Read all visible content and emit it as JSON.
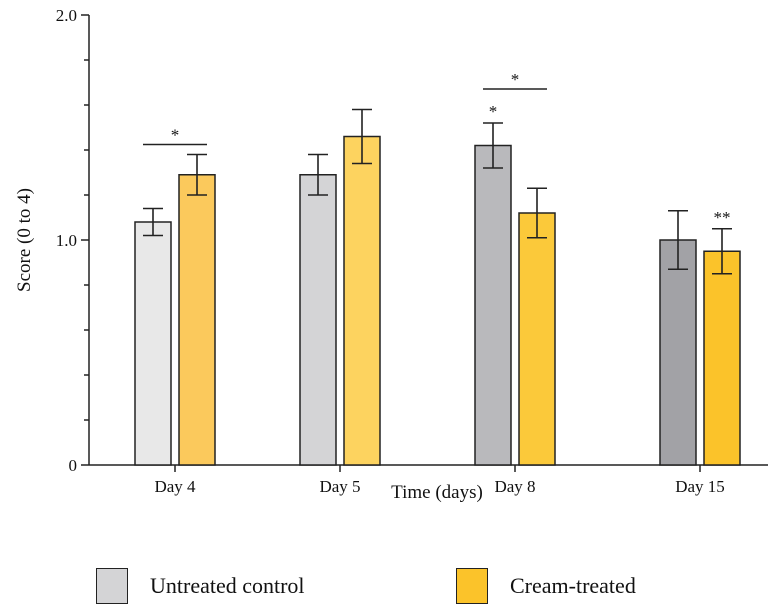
{
  "chart_data": {
    "type": "bar",
    "title": "",
    "xlabel": "Time (days)",
    "ylabel": "Score (0 to 4)",
    "ylim": [
      0,
      2.0
    ],
    "yticks": [
      {
        "value": 0,
        "label": "0"
      },
      {
        "value": 1.0,
        "label": "1.0"
      },
      {
        "value": 2.0,
        "label": "2.0"
      }
    ],
    "y_minor_step": 0.2,
    "categories": [
      "Day 4",
      "Day 5",
      "Day 8",
      "Day 15"
    ],
    "series": [
      {
        "name": "Untreated control",
        "values": [
          1.08,
          1.29,
          1.42,
          1.0
        ],
        "errors": [
          0.06,
          0.09,
          0.1,
          0.13
        ],
        "colors": [
          "#e8e8e8",
          "#d4d4d6",
          "#b9b9bc",
          "#a2a2a6"
        ],
        "markers": [
          "",
          "",
          "*",
          ""
        ]
      },
      {
        "name": "Cream-treated",
        "values": [
          1.29,
          1.46,
          1.12,
          0.95
        ],
        "errors": [
          0.09,
          0.12,
          0.11,
          0.1
        ],
        "colors": [
          "#fbc95c",
          "#fdd35f",
          "#fbc93a",
          "#fbc32a"
        ],
        "markers": [
          "",
          "",
          "",
          "**"
        ]
      }
    ],
    "comparisons": [
      {
        "category": 0,
        "label": "*"
      },
      {
        "category": 2,
        "label": "*"
      }
    ],
    "grid": false,
    "legend": {
      "position": "bottom",
      "items": [
        {
          "label": "Untreated control",
          "color": "#d4d4d6"
        },
        {
          "label": "Cream-treated",
          "color": "#fbc32a"
        }
      ]
    }
  }
}
